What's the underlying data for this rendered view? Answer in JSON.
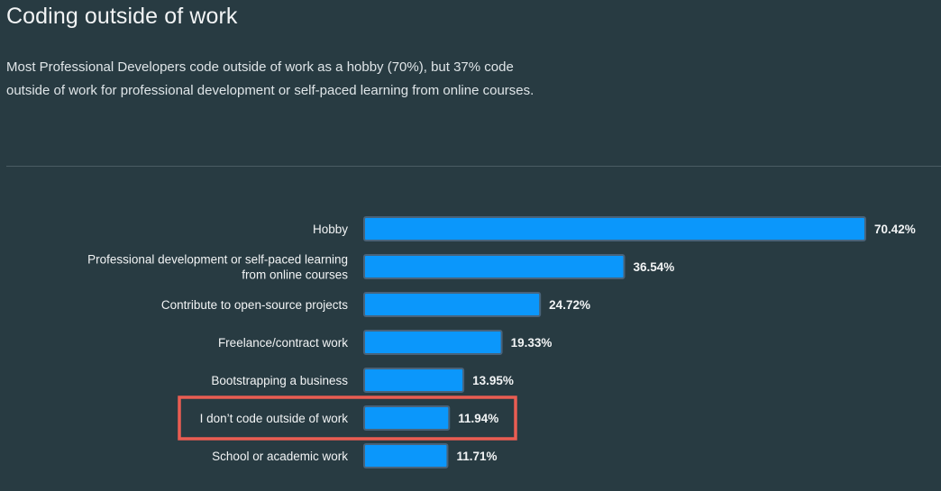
{
  "header": {
    "title": "Coding outside of work",
    "subtitle": "Most Professional Developers code outside of work as a hobby (70%), but 37% code outside of work for professional development or self-paced learning from online courses."
  },
  "colors": {
    "bar": "#0b97fb",
    "highlight": "#ea5d52",
    "background": "#283b42"
  },
  "chart_data": {
    "type": "bar",
    "orientation": "horizontal",
    "title": "Coding outside of work",
    "xlabel": "",
    "ylabel": "",
    "xlim": [
      0,
      70.42
    ],
    "grid": false,
    "highlighted_category": "I don’t code outside of work",
    "categories": [
      "Hobby",
      "Professional development or self-paced learning from online courses",
      "Contribute to open-source projects",
      "Freelance/contract work",
      "Bootstrapping a business",
      "I don’t code outside of work",
      "School or academic work"
    ],
    "category_lines": [
      [
        "Hobby"
      ],
      [
        "Professional development or self-paced learning",
        "from online courses"
      ],
      [
        "Contribute to open-source projects"
      ],
      [
        "Freelance/contract work"
      ],
      [
        "Bootstrapping a business"
      ],
      [
        "I don’t code outside of work"
      ],
      [
        "School or academic work"
      ]
    ],
    "values": [
      70.42,
      36.54,
      24.72,
      19.33,
      13.95,
      11.94,
      11.71
    ],
    "value_labels": [
      "70.42%",
      "36.54%",
      "24.72%",
      "19.33%",
      "13.95%",
      "11.94%",
      "11.71%"
    ]
  }
}
